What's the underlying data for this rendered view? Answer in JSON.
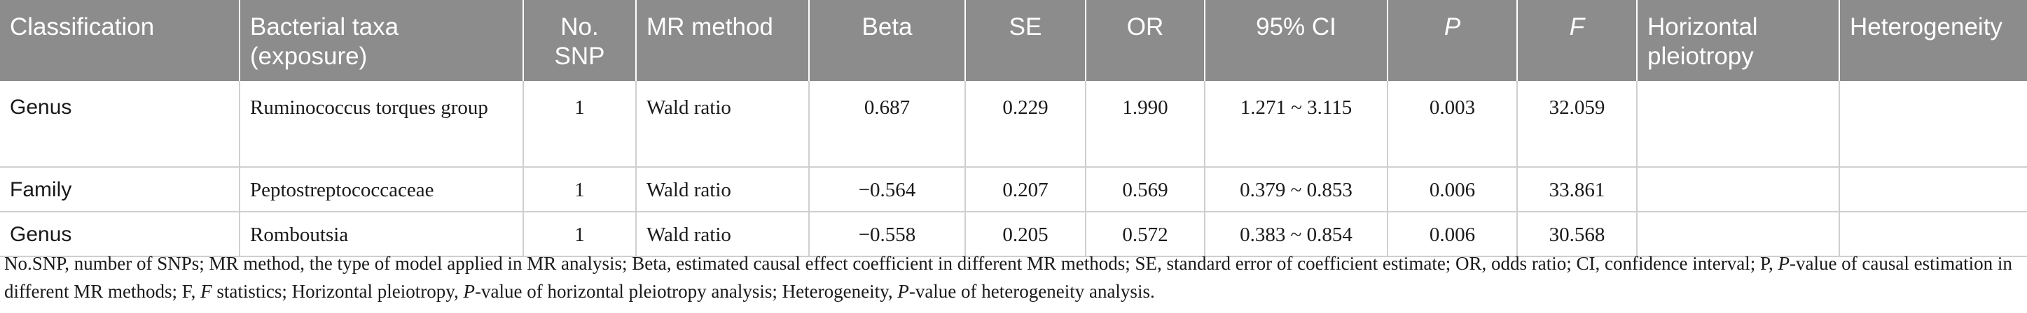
{
  "headers": [
    "Classification",
    "Bacterial taxa (exposure)",
    "No. SNP",
    "MR method",
    "Beta",
    "SE",
    "OR",
    "95% CI",
    "P",
    "F",
    "Horizontal pleiotropy",
    "Heterogeneity"
  ],
  "rows": [
    [
      "Genus",
      "Ruminococcus torques group",
      "1",
      "Wald ratio",
      "0.687",
      "0.229",
      "1.990",
      "1.271 ~ 3.115",
      "0.003",
      "32.059",
      "",
      ""
    ],
    [
      "Family",
      "Peptostreptococcaceae",
      "1",
      "Wald ratio",
      "−0.564",
      "0.207",
      "0.569",
      "0.379 ~ 0.853",
      "0.006",
      "33.861",
      "",
      ""
    ],
    [
      "Genus",
      "Romboutsia",
      "1",
      "Wald ratio",
      "−0.558",
      "0.205",
      "0.572",
      "0.383 ~ 0.854",
      "0.006",
      "30.568",
      "",
      ""
    ]
  ],
  "footnote": {
    "p1": "No.SNP, number of SNPs; MR method, the type of model applied in MR analysis; Beta, estimated causal effect coefficient in different MR methods; SE, standard error of coefficient estimate; OR, odds ratio; CI, confidence interval; P, ",
    "p1_it": "P",
    "p2": "-value of causal estimation in different MR methods; F, ",
    "p2_it": "F",
    "p3": " statistics; Horizontal pleiotropy, ",
    "p3_it": "P",
    "p4": "-value of horizontal pleiotropy analysis; Heterogeneity, ",
    "p4_it": "P",
    "p5": "-value of heterogeneity analysis."
  }
}
